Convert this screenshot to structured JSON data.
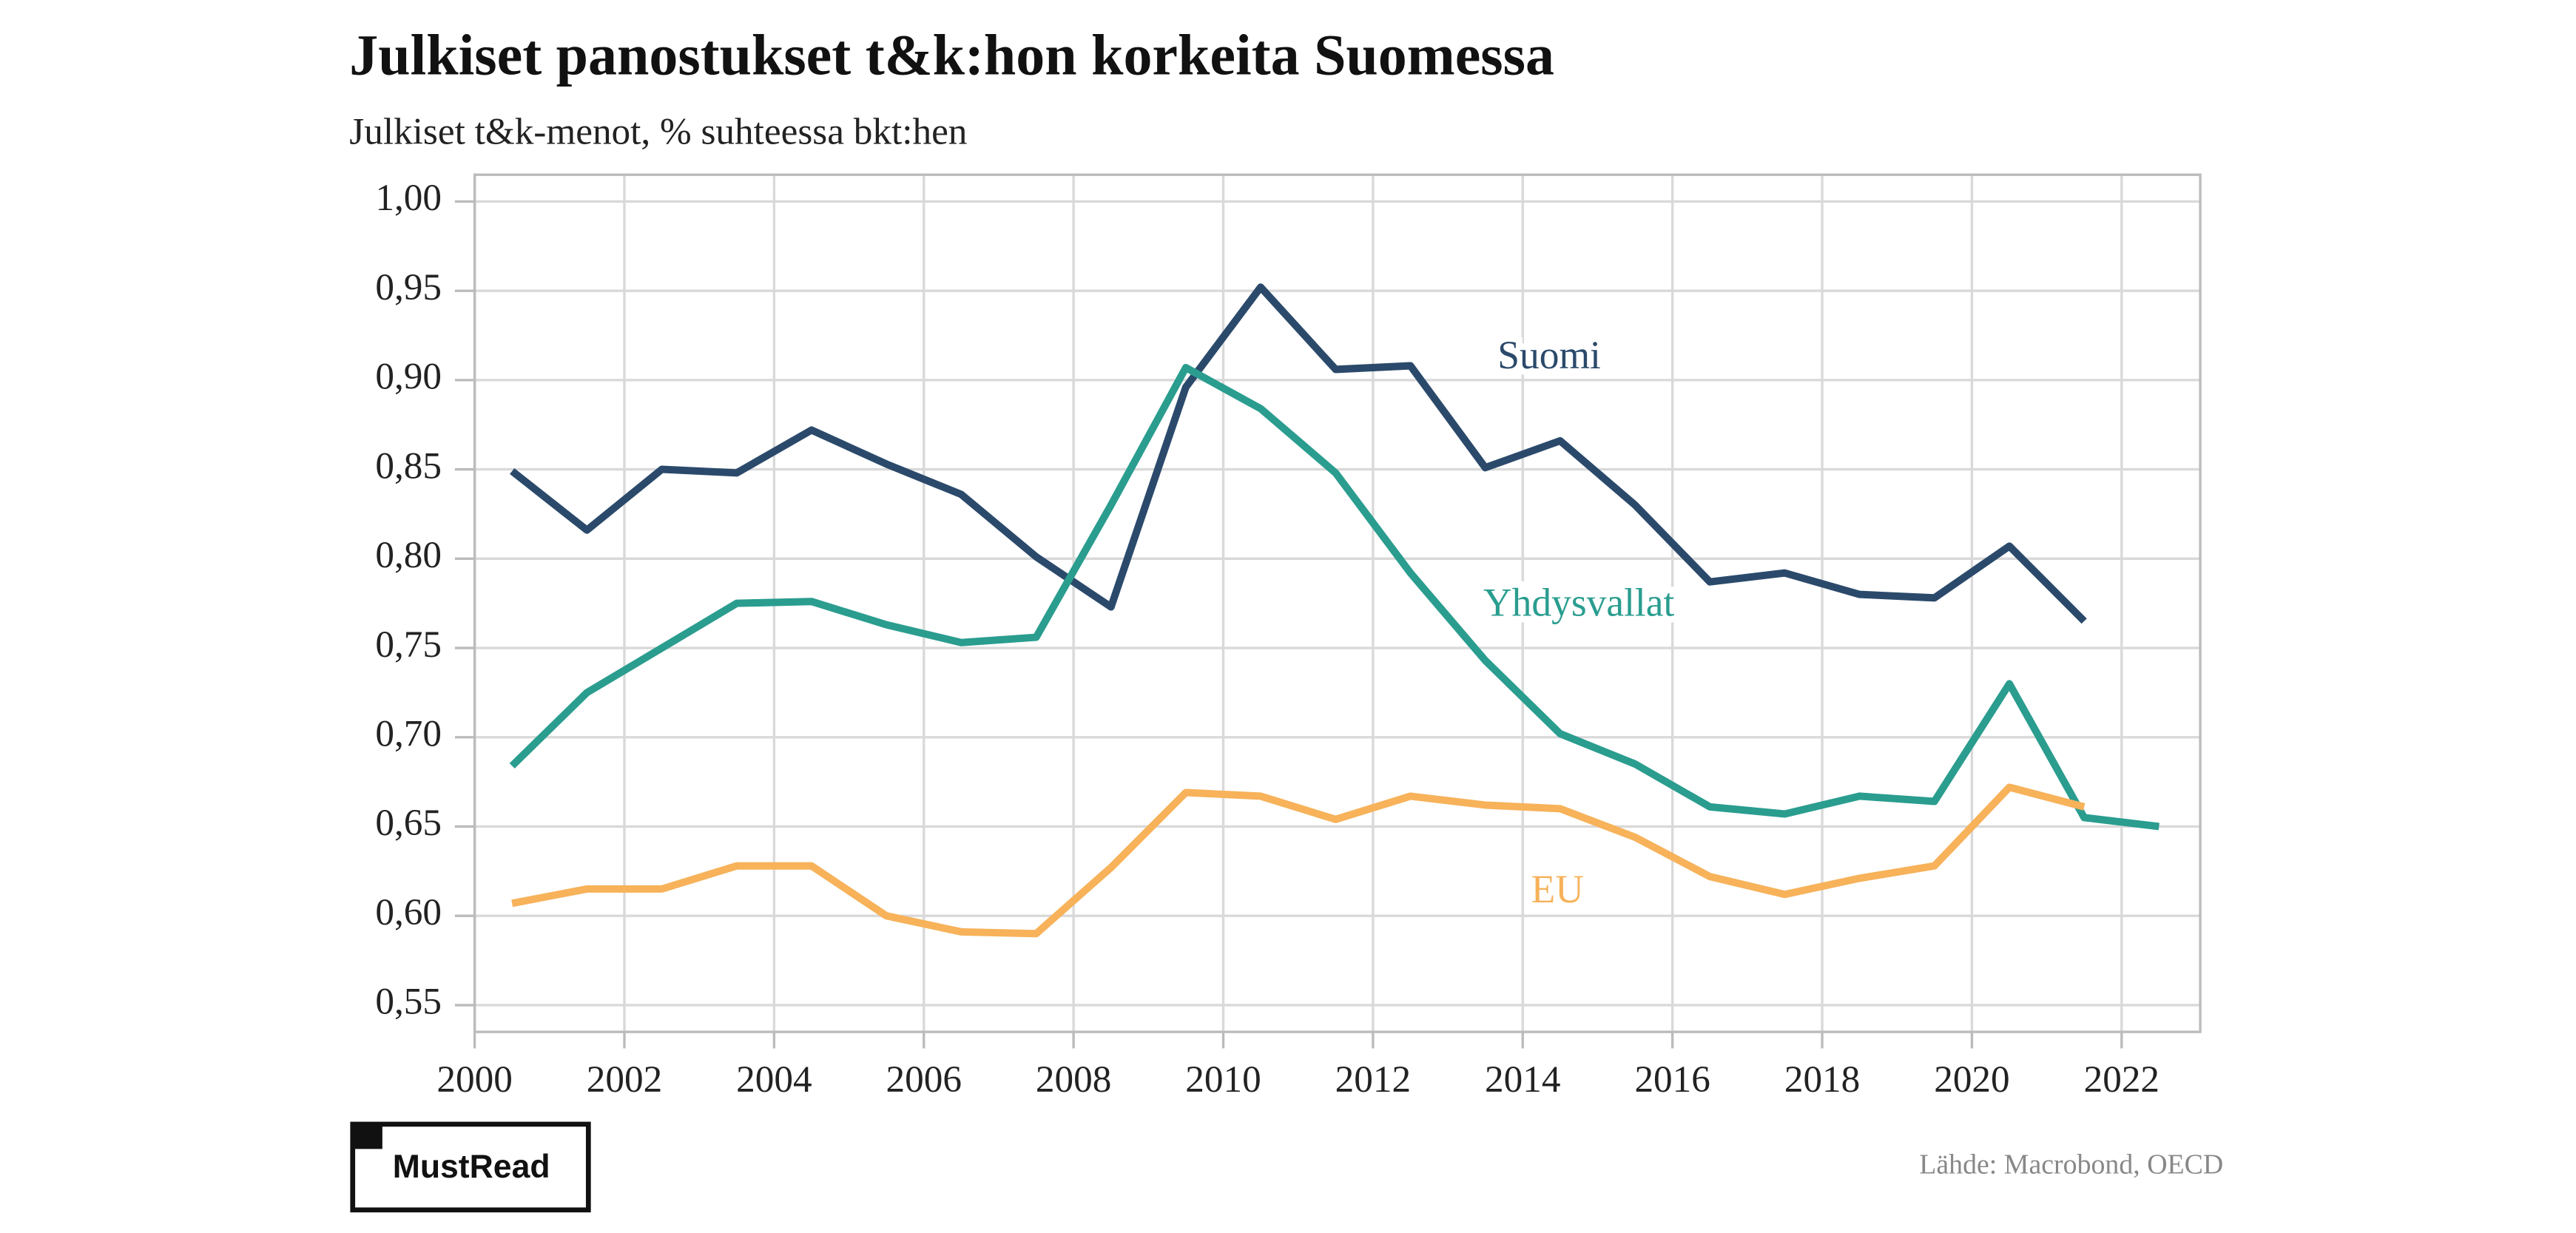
{
  "chart_data": {
    "type": "line",
    "title": "Julkiset panostukset t&k:hon korkeita Suomessa",
    "subtitle": "Julkiset t&k-menot, % suhteessa bkt:hen",
    "source": "Lähde: Macrobond, OECD",
    "logo": "MustRead",
    "x": [
      2000.5,
      2001.5,
      2002.5,
      2003.5,
      2004.5,
      2005.5,
      2006.5,
      2007.5,
      2008.5,
      2009.5,
      2010.5,
      2011.5,
      2012.5,
      2013.5,
      2014.5,
      2015.5,
      2016.5,
      2017.5,
      2018.5,
      2019.5,
      2020.5,
      2021.5,
      2022.5
    ],
    "series": [
      {
        "name": "Suomi",
        "color": "#2b4a6b",
        "values": [
          0.849,
          0.816,
          0.85,
          0.848,
          0.872,
          0.853,
          0.836,
          0.801,
          0.773,
          0.896,
          0.952,
          0.906,
          0.908,
          0.851,
          0.866,
          0.83,
          0.787,
          0.792,
          0.78,
          0.778,
          0.807,
          0.765,
          null
        ]
      },
      {
        "name": "Yhdysvallat",
        "color": "#2a9d8f",
        "values": [
          0.684,
          0.725,
          0.75,
          0.775,
          0.776,
          0.763,
          0.753,
          0.756,
          0.83,
          0.907,
          0.884,
          0.848,
          0.792,
          0.743,
          0.702,
          0.685,
          0.661,
          0.657,
          0.667,
          0.664,
          0.73,
          0.655,
          0.65
        ]
      },
      {
        "name": "EU",
        "color": "#f7b25a",
        "values": [
          0.607,
          0.615,
          0.615,
          0.628,
          0.628,
          0.6,
          0.591,
          0.59,
          0.627,
          0.669,
          0.667,
          0.654,
          0.667,
          0.662,
          0.66,
          0.644,
          0.622,
          0.612,
          0.621,
          0.628,
          0.672,
          0.661,
          null
        ]
      }
    ],
    "xlim": [
      2000,
      2023.05
    ],
    "xticks": [
      2000,
      2002,
      2004,
      2006,
      2008,
      2010,
      2012,
      2014,
      2016,
      2018,
      2020,
      2022
    ],
    "ylim": [
      0.535,
      1.015
    ],
    "yticks": [
      {
        "value": 0.55,
        "label": "0,55"
      },
      {
        "value": 0.6,
        "label": "0,60"
      },
      {
        "value": 0.65,
        "label": "0,65"
      },
      {
        "value": 0.7,
        "label": "0,70"
      },
      {
        "value": 0.75,
        "label": "0,75"
      },
      {
        "value": 0.8,
        "label": "0,80"
      },
      {
        "value": 0.85,
        "label": "0,85"
      },
      {
        "value": 0.9,
        "label": "0,90"
      },
      {
        "value": 0.95,
        "label": "0,95"
      },
      {
        "value": 1.0,
        "label": "1,00"
      }
    ],
    "grid": true
  }
}
